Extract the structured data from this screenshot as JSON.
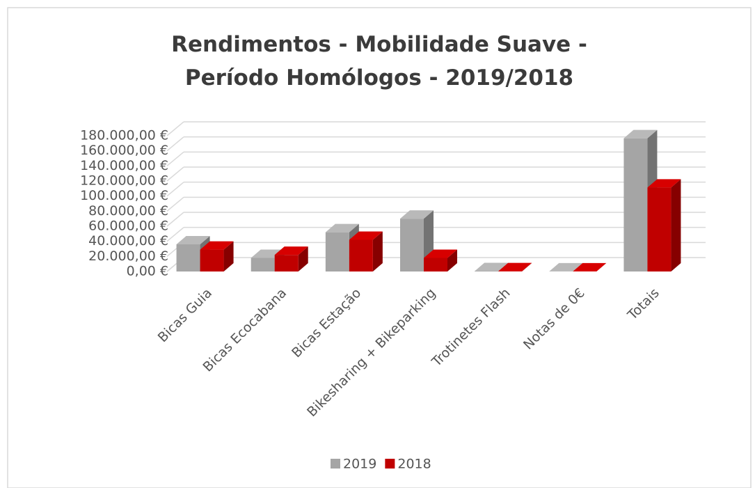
{
  "chart_data": {
    "type": "bar3d",
    "title": "Rendimentos - Mobilidade Suave - Período Homólogos - 2019/2018",
    "categories": [
      "Bicas Guia",
      "Bicas Ecocabana",
      "Bicas Estação",
      "Bikesharing + Bikeparking",
      "Trotinetes Flash",
      "Notas de 0€",
      "Totais"
    ],
    "series": [
      {
        "name": "2019",
        "color": "#a5a5a5",
        "values": [
          36000,
          18000,
          52000,
          70000,
          500,
          100,
          176600
        ]
      },
      {
        "name": "2018",
        "color": "#c00000",
        "values": [
          29000,
          22000,
          42000,
          18000,
          300,
          100,
          111400
        ]
      }
    ],
    "ylim": [
      0,
      180000
    ],
    "yticks": [
      {
        "value": 0,
        "label": "0,00 €"
      },
      {
        "value": 20000,
        "label": "20.000,00 €"
      },
      {
        "value": 40000,
        "label": "40.000,00 €"
      },
      {
        "value": 60000,
        "label": "60.000,00 €"
      },
      {
        "value": 80000,
        "label": "80.000,00 €"
      },
      {
        "value": 100000,
        "label": "100.000,00 €"
      },
      {
        "value": 120000,
        "label": "120.000,00 €"
      },
      {
        "value": 140000,
        "label": "140.000,00 €"
      },
      {
        "value": 160000,
        "label": "160.000,00 €"
      },
      {
        "value": 180000,
        "label": "180.000,00 €"
      }
    ],
    "grid": true,
    "legend": "bottom"
  }
}
